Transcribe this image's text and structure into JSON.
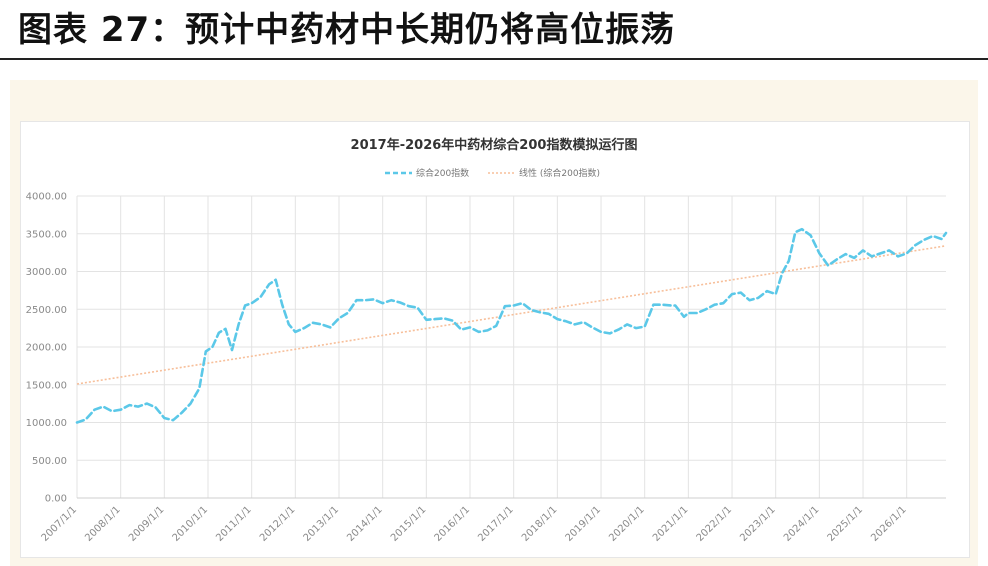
{
  "heading": "图表 27：预计中药材中长期仍将高位振荡",
  "chart_data": {
    "type": "line",
    "title": "2017年-2026年中药材综合200指数模拟运行图",
    "ylim": [
      0,
      4000
    ],
    "y_ticks": [
      "0.00",
      "500.00",
      "1000.00",
      "1500.00",
      "2000.00",
      "2500.00",
      "3000.00",
      "3500.00",
      "4000.00"
    ],
    "x_ticks": [
      "2007/1/1",
      "2008/1/1",
      "2009/1/1",
      "2010/1/1",
      "2011/1/1",
      "2012/1/1",
      "2013/1/1",
      "2014/1/1",
      "2015/1/1",
      "2016/1/1",
      "2017/1/1",
      "2018/1/1",
      "2019/1/1",
      "2020/1/1",
      "2021/1/1",
      "2022/1/1",
      "2023/1/1",
      "2024/1/1",
      "2025/1/1",
      "2026/1/1"
    ],
    "grid": true,
    "legend_position": "top",
    "series": [
      {
        "name": "综合200指数",
        "color": "#5bc8e8",
        "style": "dashed",
        "x": [
          2007.0,
          2007.2,
          2007.4,
          2007.6,
          2007.8,
          2008.0,
          2008.2,
          2008.4,
          2008.6,
          2008.8,
          2009.0,
          2009.2,
          2009.4,
          2009.6,
          2009.8,
          2009.95,
          2010.1,
          2010.25,
          2010.4,
          2010.55,
          2010.7,
          2010.85,
          2011.0,
          2011.2,
          2011.4,
          2011.55,
          2011.7,
          2011.85,
          2012.0,
          2012.2,
          2012.4,
          2012.6,
          2012.8,
          2013.0,
          2013.2,
          2013.4,
          2013.6,
          2013.8,
          2014.0,
          2014.2,
          2014.4,
          2014.6,
          2014.8,
          2015.0,
          2015.2,
          2015.4,
          2015.6,
          2015.8,
          2016.0,
          2016.2,
          2016.4,
          2016.6,
          2016.8,
          2017.0,
          2017.2,
          2017.4,
          2017.6,
          2017.8,
          2018.0,
          2018.2,
          2018.4,
          2018.6,
          2018.8,
          2019.0,
          2019.2,
          2019.4,
          2019.6,
          2019.8,
          2020.0,
          2020.2,
          2020.4,
          2020.6,
          2020.7,
          2020.9,
          2021.0,
          2021.2,
          2021.4,
          2021.6,
          2021.8,
          2022.0,
          2022.2,
          2022.4,
          2022.6,
          2022.8,
          2023.0,
          2023.15,
          2023.3,
          2023.45,
          2023.6,
          2023.8,
          2024.0,
          2024.2,
          2024.4,
          2024.6,
          2024.8,
          2025.0,
          2025.2,
          2025.4,
          2025.6,
          2025.8,
          2026.0,
          2026.2,
          2026.4,
          2026.6,
          2026.8,
          2026.9
        ],
        "values": [
          1000,
          1040,
          1170,
          1210,
          1150,
          1170,
          1230,
          1210,
          1250,
          1200,
          1060,
          1030,
          1130,
          1250,
          1450,
          1940,
          2000,
          2190,
          2240,
          1960,
          2300,
          2550,
          2580,
          2660,
          2830,
          2890,
          2560,
          2300,
          2200,
          2250,
          2320,
          2300,
          2260,
          2380,
          2450,
          2620,
          2620,
          2630,
          2580,
          2620,
          2590,
          2540,
          2520,
          2360,
          2370,
          2380,
          2350,
          2230,
          2260,
          2200,
          2220,
          2280,
          2540,
          2550,
          2580,
          2490,
          2460,
          2440,
          2370,
          2340,
          2300,
          2330,
          2260,
          2200,
          2180,
          2230,
          2300,
          2250,
          2270,
          2560,
          2560,
          2550,
          2550,
          2400,
          2450,
          2450,
          2500,
          2560,
          2580,
          2700,
          2720,
          2620,
          2650,
          2740,
          2700,
          2980,
          3140,
          3520,
          3560,
          3480,
          3240,
          3080,
          3160,
          3230,
          3180,
          3280,
          3200,
          3240,
          3280,
          3200,
          3240,
          3350,
          3420,
          3470,
          3430,
          3510
        ]
      },
      {
        "name": "线性 (综合200指数)",
        "color": "#f7bf9a",
        "style": "dotted",
        "x": [
          2007.0,
          2026.9
        ],
        "values": [
          1510,
          3340
        ]
      }
    ]
  }
}
